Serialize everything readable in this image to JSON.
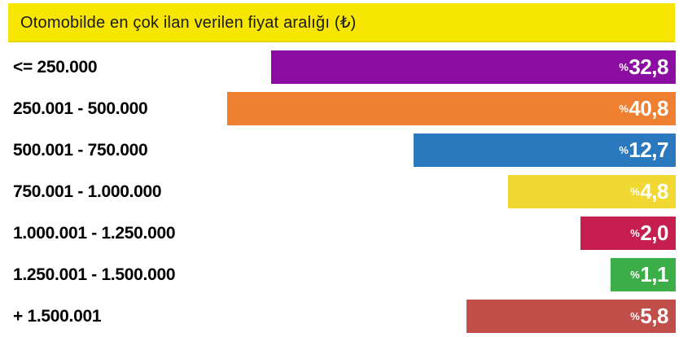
{
  "chart_data": {
    "type": "bar",
    "orientation": "horizontal",
    "title": "Otomobilde en çok ilan verilen fiyat aralığı (₺)",
    "value_unit": "%",
    "decimal_style": "comma",
    "legend": "none",
    "grid": false,
    "header_background": "#F7E600",
    "bars_right_aligned": true,
    "categories": [
      "<= 250.000",
      "250.001 - 500.000",
      "500.001 - 750.000",
      "750.001 - 1.000.000",
      "1.000.001 - 1.250.000",
      "1.250.001 - 1.500.000",
      "+ 1.500.001"
    ],
    "values": [
      32.8,
      40.8,
      12.7,
      4.8,
      2.0,
      1.1,
      5.8
    ],
    "rows": [
      {
        "label": "<= 250.000",
        "value": 32.8,
        "value_display": "32,8",
        "pct_sign": "%",
        "color": "#8B0DA2",
        "bar_style": "width:497px;background:#8B0DA2"
      },
      {
        "label": "250.001 - 500.000",
        "value": 40.8,
        "value_display": "40,8",
        "pct_sign": "%",
        "color": "#EF7F31",
        "bar_style": "width:551px;background:#EF7F31"
      },
      {
        "label": "500.001 - 750.000",
        "value": 12.7,
        "value_display": "12,7",
        "pct_sign": "%",
        "color": "#2A79BE",
        "bar_style": "width:322px;background:#2A79BE"
      },
      {
        "label": "750.001 - 1.000.000",
        "value": 4.8,
        "value_display": "4,8",
        "pct_sign": "%",
        "color": "#F1D833",
        "bar_style": "width:206px;background:#F1D833"
      },
      {
        "label": "1.000.001 - 1.250.000",
        "value": 2.0,
        "value_display": "2,0",
        "pct_sign": "%",
        "color": "#C61E4F",
        "bar_style": "width:117px;background:#C61E4F"
      },
      {
        "label": "1.250.001 - 1.500.000",
        "value": 1.1,
        "value_display": "1,1",
        "pct_sign": "%",
        "color": "#3CAE47",
        "bar_style": "width:80px;background:#3CAE47"
      },
      {
        "label": "+ 1.500.001",
        "value": 5.8,
        "value_display": "5,8",
        "pct_sign": "%",
        "color": "#C04F4A",
        "bar_style": "width:257px;background:#C04F4A"
      }
    ]
  }
}
